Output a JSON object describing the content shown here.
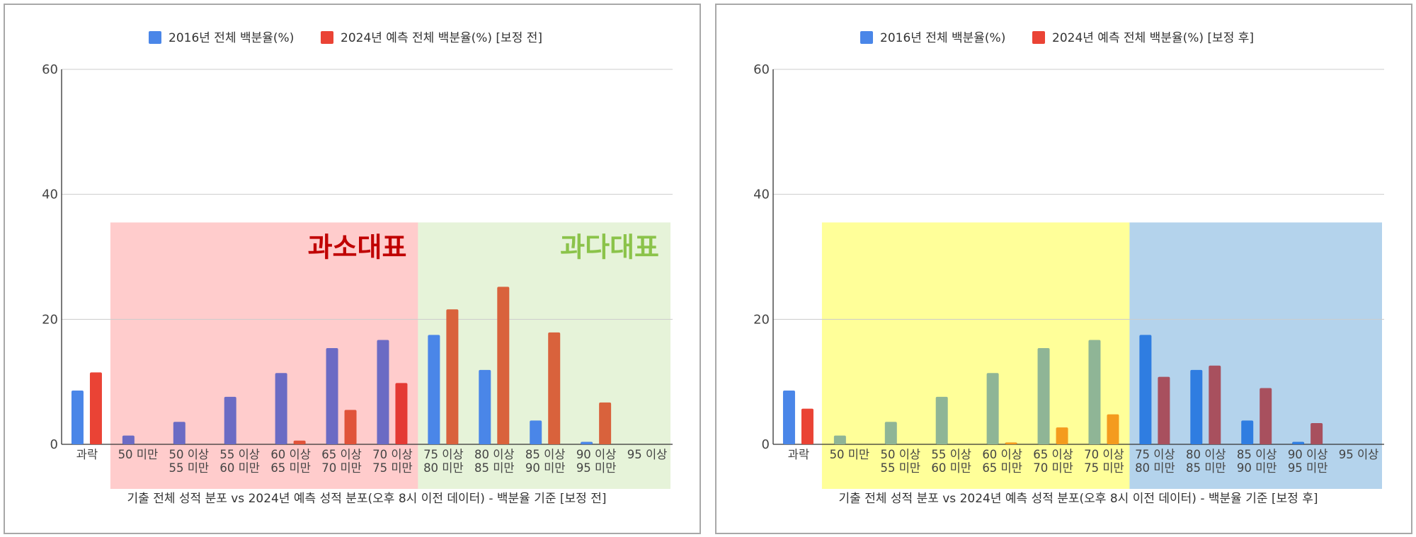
{
  "chart_data": [
    {
      "type": "bar",
      "categories": [
        [
          "과락"
        ],
        [
          "50 미만"
        ],
        [
          "50 이상",
          "55 미만"
        ],
        [
          "55 이상",
          "60 미만"
        ],
        [
          "60 이상",
          "65 미만"
        ],
        [
          "65 이상",
          "70 미만"
        ],
        [
          "70 이상",
          "75 미만"
        ],
        [
          "75 이상",
          "80 미만"
        ],
        [
          "80 이상",
          "85 미만"
        ],
        [
          "85 이상",
          "90 미만"
        ],
        [
          "90 이상",
          "95 미만"
        ],
        [
          "95 이상"
        ]
      ],
      "series": [
        {
          "name": "2016년 전체 백분율(%)",
          "values": [
            8.6,
            1.4,
            3.6,
            7.6,
            11.4,
            15.4,
            16.7,
            17.5,
            11.9,
            3.8,
            0.4,
            0
          ]
        },
        {
          "name": "2024년 예측 전체 백분율(%) [보정 전]",
          "values": [
            11.5,
            0,
            0,
            0,
            0.6,
            5.5,
            9.8,
            21.6,
            25.2,
            17.9,
            6.7,
            0
          ]
        }
      ],
      "bar_colors": {
        "series1": [
          "#4a86e8",
          "#6b6bc4",
          "#6b6bc4",
          "#6b6bc4",
          "#6b6bc4",
          "#6b6bc4",
          "#6b6bc4",
          "#4a86e8",
          "#4a86e8",
          "#4a86e8",
          "#4a86e8",
          "#4a86e8"
        ],
        "series2": [
          "#ea4335",
          "#ea4335",
          "#ea4335",
          "#ea4335",
          "#e0533a",
          "#e0533a",
          "#e43a34",
          "#d9623c",
          "#d9623c",
          "#d9623c",
          "#d9623c",
          "#d9623c"
        ]
      },
      "legend_colors": [
        "#4a86e8",
        "#ea4335"
      ],
      "ylim": [
        0,
        60
      ],
      "yticks": [
        0,
        20,
        40,
        60
      ],
      "title": "기출 전체 성적 분포 vs 2024년 예측 성적 분포(오후 8시 이전 데이터) - 백분율 기준 [보정 전]",
      "legend_position": "top",
      "grid": true,
      "regions": [
        {
          "from": 1,
          "to": 6,
          "color": "#ffcccc",
          "label": "과소대표",
          "label_color": "#c00000"
        },
        {
          "from": 7,
          "to": 11,
          "color": "#e6f3d9",
          "label": "과다대표",
          "label_color": "#8bc34a"
        }
      ]
    },
    {
      "type": "bar",
      "categories": [
        [
          "과락"
        ],
        [
          "50 미만"
        ],
        [
          "50 이상",
          "55 미만"
        ],
        [
          "55 이상",
          "60 미만"
        ],
        [
          "60 이상",
          "65 미만"
        ],
        [
          "65 이상",
          "70 미만"
        ],
        [
          "70 이상",
          "75 미만"
        ],
        [
          "75 이상",
          "80 미만"
        ],
        [
          "80 이상",
          "85 미만"
        ],
        [
          "85 이상",
          "90 미만"
        ],
        [
          "90 이상",
          "95 미만"
        ],
        [
          "95 이상"
        ]
      ],
      "series": [
        {
          "name": "2016년 전체 백분율(%)",
          "values": [
            8.6,
            1.4,
            3.6,
            7.6,
            11.4,
            15.4,
            16.7,
            17.5,
            11.9,
            3.8,
            0.4,
            0
          ]
        },
        {
          "name": "2024년 예측 전체 백분율(%) [보정 후]",
          "values": [
            5.7,
            0,
            0,
            0,
            0.3,
            2.7,
            4.8,
            10.8,
            12.6,
            9.0,
            3.4,
            0
          ]
        }
      ],
      "bar_colors": {
        "series1": [
          "#4a86e8",
          "#8fb596",
          "#8fb596",
          "#8fb596",
          "#8fb596",
          "#8fb596",
          "#8fb596",
          "#2f7de1",
          "#2f7de1",
          "#2f7de1",
          "#2f7de1",
          "#2f7de1"
        ],
        "series2": [
          "#ea4335",
          "#f49b1e",
          "#f49b1e",
          "#f49b1e",
          "#f49b1e",
          "#f49b1e",
          "#f49b1e",
          "#a8505e",
          "#a8505e",
          "#a8505e",
          "#a8505e",
          "#a8505e"
        ]
      },
      "legend_colors": [
        "#4a86e8",
        "#ea4335"
      ],
      "ylim": [
        0,
        60
      ],
      "yticks": [
        0,
        20,
        40,
        60
      ],
      "title": "기출 전체 성적 분포 vs 2024년 예측 성적 분포(오후 8시 이전 데이터) - 백분율 기준 [보정 후]",
      "legend_position": "top",
      "grid": true,
      "regions": [
        {
          "from": 1,
          "to": 6,
          "color": "#ffff99",
          "label": "",
          "label_color": ""
        },
        {
          "from": 7,
          "to": 11,
          "color": "#b4d3ec",
          "label": "",
          "label_color": ""
        }
      ]
    }
  ]
}
